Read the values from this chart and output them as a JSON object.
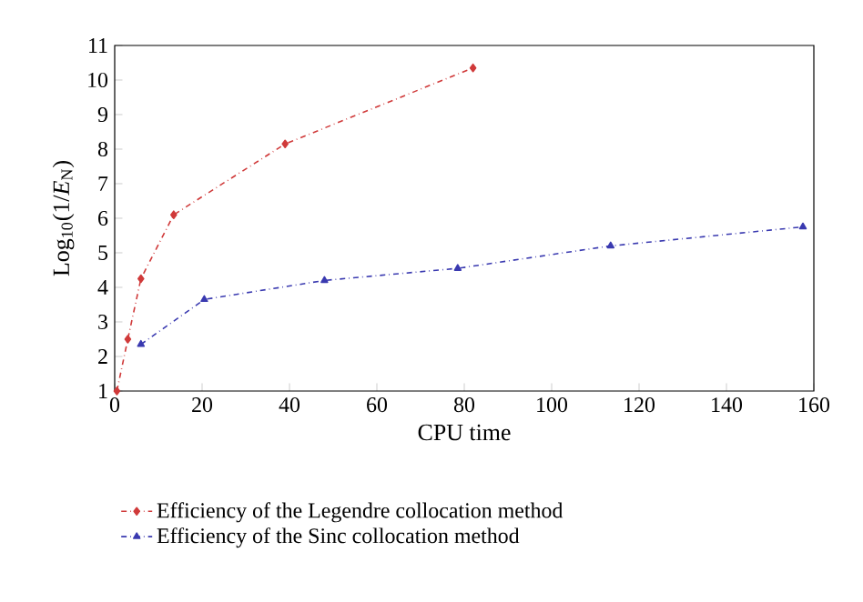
{
  "chart_data": {
    "type": "line",
    "xlabel": "CPU time",
    "ylabel": "Log$_{10}$(1/*E*$_{N}$)",
    "xlim": [
      0,
      160
    ],
    "ylim": [
      1,
      11
    ],
    "xticks": [
      0,
      20,
      40,
      60,
      80,
      100,
      120,
      140,
      160
    ],
    "yticks": [
      1,
      2,
      3,
      4,
      5,
      6,
      7,
      8,
      9,
      10,
      11
    ],
    "grid": false,
    "legend": "bottom",
    "line_style": "dashed",
    "series": [
      {
        "name": "Efficiency of the Legendre collocation method",
        "color": "#d03a3a",
        "marker": "diamond",
        "x": [
          0.5,
          3,
          6,
          13.5,
          39,
          82
        ],
        "values": [
          1.0,
          2.5,
          4.25,
          6.1,
          8.15,
          10.35
        ]
      },
      {
        "name": "Efficiency of the Sinc collocation method",
        "color": "#3a3ab0",
        "marker": "triangle",
        "x": [
          6,
          20.5,
          48,
          78.5,
          113.5,
          157.5
        ],
        "values": [
          2.35,
          3.65,
          4.2,
          4.55,
          5.2,
          5.75
        ]
      }
    ]
  }
}
